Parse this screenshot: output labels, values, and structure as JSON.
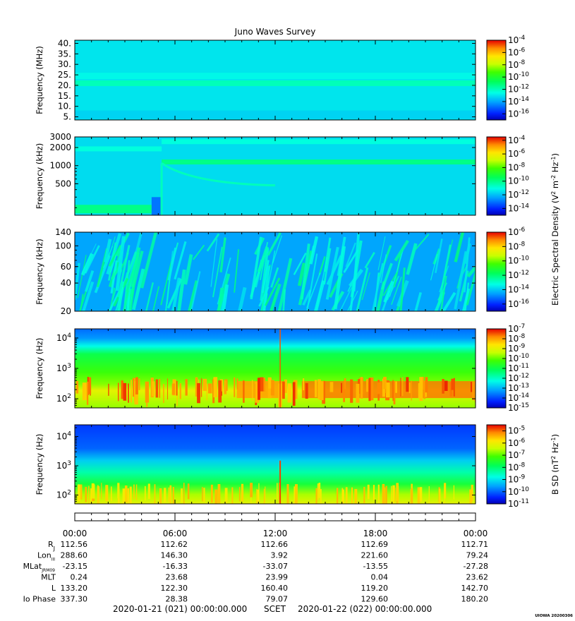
{
  "title": "Juno Waves Survey",
  "stamp": "UIOWA 20200306",
  "chart_data": [
    {
      "type": "heatmap",
      "name": "waves-hfr-high",
      "ylabel": "Frequency (MHz)",
      "yscale": "linear",
      "ylim": [
        3.5,
        41.5
      ],
      "yticks": [
        5,
        10,
        15,
        20,
        25,
        30,
        35,
        40
      ],
      "ytick_labels": [
        "5.",
        "10.",
        "15.",
        "20.",
        "25.",
        "30.",
        "35.",
        "40."
      ],
      "colorbar": {
        "scale": "log",
        "ticks": [
          "10-4",
          "10-6",
          "10-8",
          "10-10",
          "10-12",
          "10-14",
          "10-16"
        ],
        "exponents": [
          -4,
          -6,
          -8,
          -10,
          -12,
          -14,
          -16
        ],
        "range_exp": [
          -17,
          -4
        ]
      },
      "features": [
        {
          "desc": "narrow band",
          "y": 21,
          "level_exp": -12
        },
        {
          "desc": "background",
          "level_exp": -13
        }
      ]
    },
    {
      "type": "heatmap",
      "name": "waves-hfr-low",
      "ylabel": "Frequency (kHz)",
      "yscale": "log",
      "ylim": [
        150,
        3000
      ],
      "yticks": [
        500,
        1000,
        2000,
        3000
      ],
      "ytick_labels": [
        "500",
        "1000",
        "2000",
        "3000"
      ],
      "colorbar": {
        "scale": "log",
        "ticks": [
          "10-4",
          "10-6",
          "10-8",
          "10-10",
          "10-12",
          "10-14"
        ],
        "exponents": [
          -4,
          -6,
          -8,
          -10,
          -12,
          -14
        ],
        "range_exp": [
          -15,
          -3.5
        ]
      },
      "features": [
        {
          "desc": "band",
          "time_h": [
            0,
            5.2
          ],
          "y": 1900,
          "level_exp": -11
        },
        {
          "desc": "band",
          "time_h": [
            5.2,
            24
          ],
          "y": 2500,
          "level_exp": -11
        },
        {
          "desc": "band",
          "time_h": [
            5.2,
            24
          ],
          "y": 1150,
          "level_exp": -10
        },
        {
          "desc": "low band",
          "time_h": [
            0,
            4.6
          ],
          "y": 190,
          "level_exp": -10
        }
      ]
    },
    {
      "type": "heatmap",
      "name": "waves-lfr-high",
      "ylabel": "Frequency (kHz)",
      "yscale": "log",
      "ylim": [
        20,
        140
      ],
      "yticks": [
        20,
        40,
        60,
        100,
        140
      ],
      "ytick_labels": [
        "20",
        "40",
        "60",
        "100",
        "140"
      ],
      "colorbar": {
        "scale": "log",
        "ticks": [
          "10-6",
          "10-8",
          "10-10",
          "10-12",
          "10-14",
          "10-16"
        ],
        "exponents": [
          -6,
          -8,
          -10,
          -12,
          -14,
          -16
        ],
        "range_exp": [
          -17,
          -6
        ]
      },
      "features": [
        {
          "desc": "background",
          "level_exp": -14.5
        }
      ]
    },
    {
      "type": "heatmap",
      "name": "waves-lfr-low-e",
      "ylabel": "Frequency (Hz)",
      "yscale": "log",
      "ylim": [
        50,
        20000
      ],
      "yticks": [
        100,
        1000,
        10000
      ],
      "ytick_labels": [
        "10 2",
        "10 3",
        "10 4"
      ],
      "colorbar": {
        "scale": "log",
        "ticks": [
          "10-7",
          "10-8",
          "10-9",
          "10-10",
          "10-11",
          "10-12",
          "10-13",
          "10-14",
          "10-15"
        ],
        "exponents": [
          -7,
          -8,
          -9,
          -10,
          -11,
          -12,
          -13,
          -14,
          -15
        ],
        "range_exp": [
          -15,
          -7
        ]
      },
      "features": [
        {
          "desc": "intense band",
          "y": 200,
          "level_exp": -8
        }
      ]
    },
    {
      "type": "heatmap",
      "name": "waves-lfr-low-b",
      "ylabel": "Frequency (Hz)",
      "yscale": "log",
      "ylim": [
        50,
        25000
      ],
      "yticks": [
        100,
        1000,
        10000
      ],
      "ytick_labels": [
        "10 2",
        "10 3",
        "10 4"
      ],
      "colorbar": {
        "scale": "log",
        "ticks": [
          "10-5",
          "10-6",
          "10-7",
          "10-8",
          "10-9",
          "10-10",
          "10-11"
        ],
        "exponents": [
          -5,
          -6,
          -7,
          -8,
          -9,
          -10,
          -11
        ],
        "range_exp": [
          -11,
          -4.5
        ]
      },
      "features": [
        {
          "desc": "low-frequency band",
          "y": 100,
          "level_exp": -6
        }
      ]
    }
  ],
  "colorbar_titles": {
    "electric": {
      "label": "Electric Spectral Density (V",
      "sup1": "2",
      "mid": " m",
      "sup2": "-2",
      "mid2": " Hz",
      "sup3": "-1",
      "end": ")"
    },
    "magnetic": {
      "label": "B SD (nT",
      "sup1": "2",
      "mid": " Hz",
      "sup2": "-1",
      "end": ")"
    }
  },
  "time_axis": {
    "range_hours": [
      0,
      24
    ],
    "tick_labels": [
      "00:00",
      "06:00",
      "12:00",
      "18:00",
      "00:00"
    ],
    "tick_hours": [
      0,
      6,
      12,
      18,
      24
    ]
  },
  "ephemeris": [
    {
      "label": "R",
      "sub": "J",
      "values": [
        "112.56",
        "112.62",
        "112.66",
        "112.69",
        "112.71"
      ]
    },
    {
      "label": "Lon",
      "sub": "III",
      "values": [
        "288.60",
        "146.30",
        "3.92",
        "221.60",
        "79.24"
      ]
    },
    {
      "label": "MLat",
      "sub": "JRM09",
      "values": [
        "-23.15",
        "-16.33",
        "-33.07",
        "-13.55",
        "-27.28"
      ]
    },
    {
      "label": "MLT",
      "sub": "",
      "values": [
        "0.24",
        "23.68",
        "23.99",
        "0.04",
        "23.62"
      ]
    },
    {
      "label": "L",
      "sub": "",
      "values": [
        "133.20",
        "122.30",
        "160.40",
        "119.20",
        "142.70"
      ]
    },
    {
      "label": "Io Phase",
      "sub": "",
      "values": [
        "337.30",
        "28.38",
        "79.07",
        "129.60",
        "180.20"
      ]
    }
  ],
  "footer": {
    "start": "2020-01-21 (021) 00:00:00.000",
    "scet": "SCET",
    "end": "2020-01-22 (022) 00:00:00.000"
  }
}
